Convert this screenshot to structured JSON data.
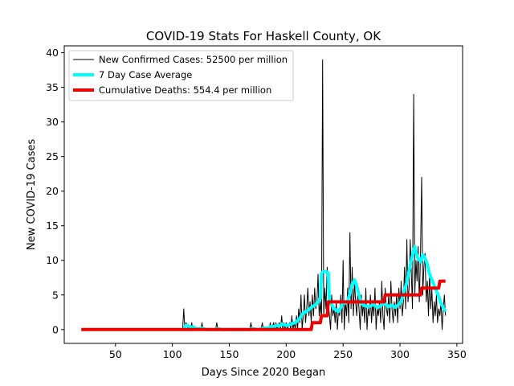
{
  "chart_data": {
    "type": "line",
    "title": "COVID-19 Stats For Haskell County, OK",
    "xlabel": "Days Since 2020 Began",
    "ylabel": "New COVID-19 Cases",
    "xlim": [
      5,
      355
    ],
    "ylim": [
      -2,
      41
    ],
    "xticks": [
      50,
      100,
      150,
      200,
      250,
      300,
      350
    ],
    "yticks": [
      0,
      5,
      10,
      15,
      20,
      25,
      30,
      35,
      40
    ],
    "grid": false,
    "legend_position": "top-left",
    "series": [
      {
        "name": "New Confirmed Cases: 52500 per million",
        "color": "#000000",
        "line_width": 1,
        "points": [
          [
            20,
            0
          ],
          [
            109,
            0
          ],
          [
            110,
            3
          ],
          [
            111,
            0
          ],
          [
            112,
            1
          ],
          [
            114,
            0
          ],
          [
            116,
            0
          ],
          [
            117,
            1
          ],
          [
            118,
            0
          ],
          [
            125,
            0
          ],
          [
            126,
            1
          ],
          [
            127,
            0
          ],
          [
            138,
            0
          ],
          [
            139,
            1
          ],
          [
            140,
            0
          ],
          [
            168,
            0
          ],
          [
            169,
            1
          ],
          [
            170,
            0
          ],
          [
            178,
            0
          ],
          [
            179,
            1
          ],
          [
            180,
            0
          ],
          [
            185,
            0
          ],
          [
            186,
            1
          ],
          [
            187,
            0
          ],
          [
            189,
            1
          ],
          [
            190,
            0
          ],
          [
            191,
            1
          ],
          [
            192,
            0
          ],
          [
            194,
            1
          ],
          [
            195,
            0
          ],
          [
            196,
            2
          ],
          [
            197,
            0
          ],
          [
            198,
            1
          ],
          [
            199,
            0
          ],
          [
            200,
            1
          ],
          [
            201,
            0
          ],
          [
            203,
            1
          ],
          [
            204,
            0
          ],
          [
            205,
            2
          ],
          [
            206,
            0
          ],
          [
            207,
            1
          ],
          [
            208,
            0
          ],
          [
            209,
            2
          ],
          [
            210,
            0
          ],
          [
            211,
            3
          ],
          [
            212,
            1
          ],
          [
            213,
            5
          ],
          [
            214,
            0
          ],
          [
            215,
            2
          ],
          [
            216,
            5
          ],
          [
            217,
            1
          ],
          [
            218,
            3
          ],
          [
            219,
            6
          ],
          [
            220,
            2
          ],
          [
            221,
            4
          ],
          [
            222,
            1
          ],
          [
            223,
            5
          ],
          [
            224,
            2
          ],
          [
            225,
            6
          ],
          [
            226,
            3
          ],
          [
            227,
            4
          ],
          [
            228,
            8
          ],
          [
            229,
            2
          ],
          [
            230,
            4
          ],
          [
            231,
            1
          ],
          [
            232,
            39
          ],
          [
            233,
            2
          ],
          [
            234,
            6
          ],
          [
            235,
            3
          ],
          [
            236,
            9
          ],
          [
            237,
            4
          ],
          [
            238,
            2
          ],
          [
            239,
            0
          ],
          [
            240,
            5
          ],
          [
            241,
            2
          ],
          [
            242,
            3
          ],
          [
            243,
            1
          ],
          [
            244,
            4
          ],
          [
            245,
            0
          ],
          [
            246,
            3
          ],
          [
            247,
            2
          ],
          [
            248,
            5
          ],
          [
            249,
            1
          ],
          [
            250,
            10
          ],
          [
            251,
            0
          ],
          [
            252,
            4
          ],
          [
            253,
            2
          ],
          [
            254,
            6
          ],
          [
            255,
            1
          ],
          [
            256,
            14
          ],
          [
            257,
            3
          ],
          [
            258,
            9
          ],
          [
            259,
            2
          ],
          [
            260,
            7
          ],
          [
            261,
            4
          ],
          [
            262,
            2
          ],
          [
            263,
            6
          ],
          [
            264,
            3
          ],
          [
            265,
            0
          ],
          [
            266,
            5
          ],
          [
            267,
            2
          ],
          [
            268,
            4
          ],
          [
            269,
            1
          ],
          [
            270,
            6
          ],
          [
            271,
            0
          ],
          [
            272,
            3
          ],
          [
            273,
            2
          ],
          [
            274,
            5
          ],
          [
            275,
            1
          ],
          [
            276,
            4
          ],
          [
            277,
            2
          ],
          [
            278,
            6
          ],
          [
            279,
            0
          ],
          [
            280,
            3
          ],
          [
            281,
            2
          ],
          [
            282,
            4
          ],
          [
            283,
            1
          ],
          [
            284,
            7
          ],
          [
            285,
            2
          ],
          [
            286,
            0
          ],
          [
            287,
            6
          ],
          [
            288,
            3
          ],
          [
            289,
            2
          ],
          [
            290,
            5
          ],
          [
            291,
            1
          ],
          [
            292,
            7
          ],
          [
            293,
            3
          ],
          [
            294,
            1
          ],
          [
            295,
            4
          ],
          [
            296,
            2
          ],
          [
            297,
            5
          ],
          [
            298,
            1
          ],
          [
            299,
            6
          ],
          [
            300,
            3
          ],
          [
            301,
            7
          ],
          [
            302,
            2
          ],
          [
            303,
            4
          ],
          [
            304,
            9
          ],
          [
            305,
            3
          ],
          [
            306,
            13
          ],
          [
            307,
            4
          ],
          [
            308,
            6
          ],
          [
            309,
            13
          ],
          [
            310,
            8
          ],
          [
            311,
            3
          ],
          [
            312,
            34
          ],
          [
            313,
            5
          ],
          [
            314,
            10
          ],
          [
            315,
            7
          ],
          [
            316,
            12
          ],
          [
            317,
            4
          ],
          [
            318,
            11
          ],
          [
            319,
            22
          ],
          [
            320,
            5
          ],
          [
            321,
            9
          ],
          [
            322,
            11
          ],
          [
            323,
            4
          ],
          [
            324,
            7
          ],
          [
            325,
            2
          ],
          [
            326,
            8
          ],
          [
            327,
            3
          ],
          [
            328,
            6
          ],
          [
            329,
            1
          ],
          [
            330,
            4
          ],
          [
            331,
            2
          ],
          [
            332,
            5
          ],
          [
            333,
            1
          ],
          [
            334,
            3
          ],
          [
            335,
            2
          ],
          [
            336,
            4
          ],
          [
            337,
            0
          ],
          [
            338,
            3
          ],
          [
            339,
            5
          ],
          [
            340,
            2
          ]
        ]
      },
      {
        "name": "7 Day Case Average",
        "color": "#00ffff",
        "line_width": 4,
        "points": [
          [
            110,
            0
          ],
          [
            111,
            0.4
          ],
          [
            112,
            0.6
          ],
          [
            113,
            0.6
          ],
          [
            114,
            0.5
          ],
          [
            116,
            0.3
          ],
          [
            118,
            0.4
          ],
          [
            120,
            0.2
          ],
          [
            122,
            0.1
          ],
          [
            124,
            0.1
          ],
          [
            126,
            0.2
          ],
          [
            128,
            0.1
          ],
          [
            130,
            0
          ],
          [
            137,
            0
          ],
          [
            139,
            0.1
          ],
          [
            141,
            0.1
          ],
          [
            143,
            0
          ],
          [
            167,
            0
          ],
          [
            169,
            0.1
          ],
          [
            172,
            0.1
          ],
          [
            175,
            0
          ],
          [
            178,
            0.1
          ],
          [
            181,
            0.2
          ],
          [
            184,
            0.2
          ],
          [
            186,
            0.4
          ],
          [
            188,
            0.4
          ],
          [
            190,
            0.5
          ],
          [
            192,
            0.6
          ],
          [
            194,
            0.5
          ],
          [
            196,
            0.8
          ],
          [
            198,
            0.7
          ],
          [
            200,
            0.6
          ],
          [
            202,
            0.6
          ],
          [
            204,
            0.8
          ],
          [
            206,
            0.9
          ],
          [
            208,
            1.0
          ],
          [
            210,
            1.3
          ],
          [
            212,
            1.6
          ],
          [
            214,
            2.2
          ],
          [
            216,
            2.5
          ],
          [
            218,
            2.6
          ],
          [
            220,
            2.9
          ],
          [
            222,
            3.2
          ],
          [
            224,
            3.4
          ],
          [
            226,
            3.6
          ],
          [
            228,
            4.0
          ],
          [
            230,
            4.5
          ],
          [
            231,
            8.1
          ],
          [
            232,
            8.3
          ],
          [
            234,
            8.4
          ],
          [
            236,
            8.3
          ],
          [
            237,
            8.2
          ],
          [
            238,
            4.0
          ],
          [
            240,
            3.6
          ],
          [
            242,
            3.0
          ],
          [
            244,
            2.8
          ],
          [
            246,
            2.6
          ],
          [
            248,
            3.2
          ],
          [
            250,
            4.0
          ],
          [
            252,
            3.8
          ],
          [
            254,
            4.2
          ],
          [
            256,
            5.2
          ],
          [
            258,
            6.5
          ],
          [
            260,
            7.2
          ],
          [
            262,
            6.3
          ],
          [
            264,
            5.0
          ],
          [
            266,
            3.8
          ],
          [
            268,
            3.5
          ],
          [
            270,
            3.4
          ],
          [
            272,
            3.3
          ],
          [
            274,
            3.4
          ],
          [
            276,
            3.6
          ],
          [
            278,
            3.5
          ],
          [
            280,
            3.2
          ],
          [
            282,
            3.3
          ],
          [
            284,
            3.6
          ],
          [
            286,
            3.8
          ],
          [
            288,
            3.6
          ],
          [
            290,
            3.3
          ],
          [
            292,
            3.5
          ],
          [
            294,
            3.4
          ],
          [
            296,
            3.2
          ],
          [
            298,
            3.5
          ],
          [
            300,
            3.8
          ],
          [
            302,
            4.5
          ],
          [
            304,
            5.8
          ],
          [
            306,
            6.8
          ],
          [
            308,
            8.5
          ],
          [
            310,
            10.0
          ],
          [
            312,
            11.5
          ],
          [
            313,
            12.0
          ],
          [
            314,
            11.2
          ],
          [
            316,
            10.2
          ],
          [
            318,
            9.8
          ],
          [
            320,
            10.8
          ],
          [
            322,
            10.3
          ],
          [
            324,
            9.4
          ],
          [
            326,
            8.0
          ],
          [
            328,
            7.2
          ],
          [
            330,
            6.4
          ],
          [
            332,
            5.6
          ],
          [
            334,
            4.8
          ],
          [
            336,
            3.8
          ],
          [
            338,
            3.2
          ],
          [
            340,
            2.6
          ]
        ]
      },
      {
        "name": "Cumulative Deaths: 554.4 per million",
        "color": "#ee0000",
        "line_width": 4,
        "points": [
          [
            20,
            0
          ],
          [
            222,
            0
          ],
          [
            223,
            1
          ],
          [
            230,
            1
          ],
          [
            231,
            2
          ],
          [
            236,
            2
          ],
          [
            237,
            4
          ],
          [
            286,
            4
          ],
          [
            287,
            5
          ],
          [
            318,
            5
          ],
          [
            319,
            6
          ],
          [
            334,
            6
          ],
          [
            335,
            7
          ],
          [
            340,
            7
          ]
        ]
      }
    ]
  }
}
